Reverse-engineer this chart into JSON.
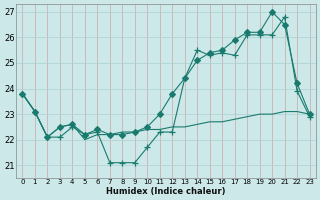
{
  "xlabel": "Humidex (Indice chaleur)",
  "bg_color": "#cce8e8",
  "line_color": "#1a7a6e",
  "grid_color": "#add0d0",
  "red_grid_color": "#c8a8a8",
  "ylim": [
    20.5,
    27.3
  ],
  "xlim": [
    -0.5,
    23.5
  ],
  "yticks": [
    21,
    22,
    23,
    24,
    25,
    26,
    27
  ],
  "xticks": [
    0,
    1,
    2,
    3,
    4,
    5,
    6,
    7,
    8,
    9,
    10,
    11,
    12,
    13,
    14,
    15,
    16,
    17,
    18,
    19,
    20,
    21,
    22,
    23
  ],
  "series": [
    {
      "x": [
        0,
        1,
        2,
        3,
        4,
        5,
        6,
        7,
        8,
        9,
        10,
        11,
        12,
        13,
        14,
        15,
        16,
        17,
        18,
        19,
        20,
        21,
        22,
        23
      ],
      "y": [
        23.8,
        23.1,
        22.1,
        22.5,
        22.6,
        22.2,
        22.4,
        22.2,
        22.2,
        22.3,
        22.5,
        23.0,
        23.8,
        24.4,
        25.1,
        25.4,
        25.5,
        25.9,
        26.2,
        26.2,
        27.0,
        26.5,
        24.2,
        23.0
      ],
      "marker": "D",
      "markersize": 3,
      "linestyle": "-"
    },
    {
      "x": [
        0,
        1,
        2,
        3,
        4,
        5,
        6,
        7,
        8,
        9,
        10,
        11,
        12,
        13,
        14,
        15,
        16,
        17,
        18,
        19,
        20,
        21,
        22,
        23
      ],
      "y": [
        23.8,
        23.1,
        22.1,
        22.1,
        22.5,
        22.2,
        22.3,
        21.1,
        21.1,
        21.1,
        21.7,
        22.3,
        22.3,
        24.4,
        25.5,
        25.3,
        25.4,
        25.3,
        26.1,
        26.1,
        26.1,
        26.8,
        23.9,
        22.9
      ],
      "marker": "+",
      "markersize": 4,
      "linestyle": "-"
    },
    {
      "x": [
        0,
        1,
        2,
        3,
        4,
        5,
        6,
        7,
        8,
        9,
        10,
        11,
        12,
        13,
        14,
        15,
        16,
        17,
        18,
        19,
        20,
        21,
        22,
        23
      ],
      "y": [
        23.8,
        23.1,
        22.1,
        22.5,
        22.6,
        22.0,
        22.2,
        22.2,
        22.3,
        22.3,
        22.4,
        22.4,
        22.5,
        22.5,
        22.6,
        22.7,
        22.7,
        22.8,
        22.9,
        23.0,
        23.0,
        23.1,
        23.1,
        23.0
      ],
      "marker": null,
      "markersize": 0,
      "linestyle": "-"
    }
  ]
}
